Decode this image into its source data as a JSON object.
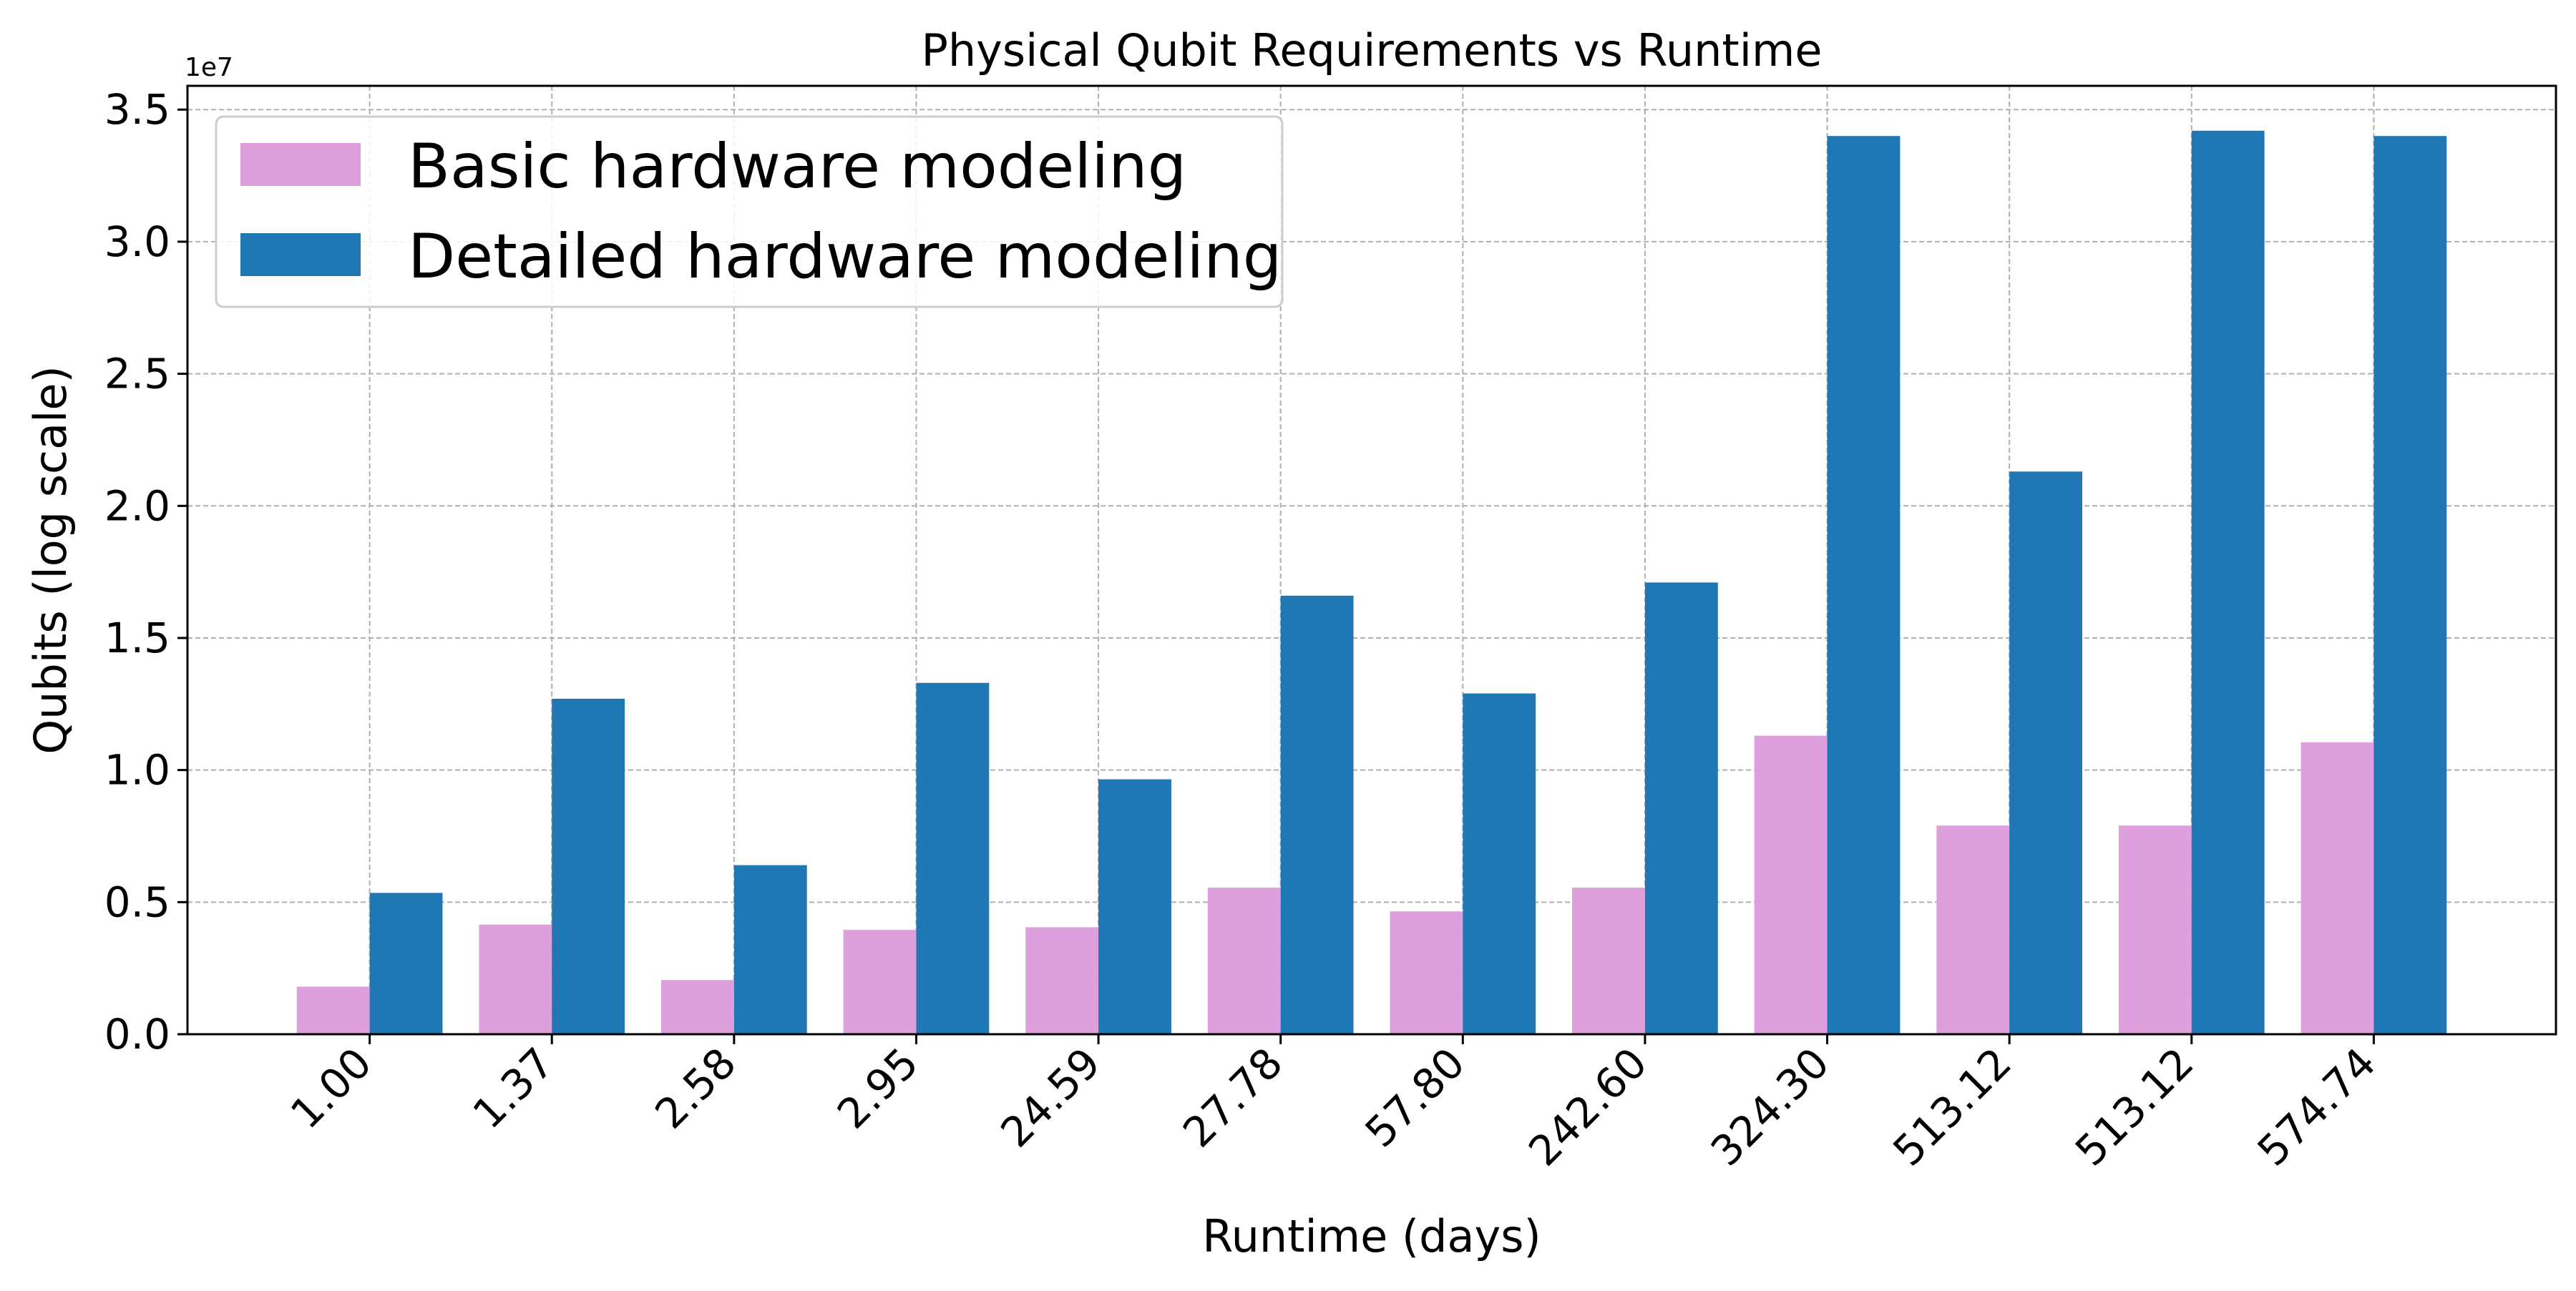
{
  "chart_data": {
    "type": "bar",
    "title": "Physical Qubit Requirements vs Runtime",
    "xlabel": "Runtime (days)",
    "ylabel": "Qubits (log scale)",
    "y_offset_label": "1e7",
    "categories": [
      "1.00",
      "1.37",
      "2.58",
      "2.95",
      "24.59",
      "27.78",
      "57.80",
      "242.60",
      "324.30",
      "513.12",
      "513.12",
      "574.74"
    ],
    "series": [
      {
        "name": "Basic hardware modeling",
        "color": "#dda0dd",
        "values": [
          1800000,
          4150000,
          2050000,
          3950000,
          4050000,
          5550000,
          4650000,
          5550000,
          11300000,
          7900000,
          7900000,
          11050000
        ]
      },
      {
        "name": "Detailed hardware modeling",
        "color": "#1f77b4",
        "values": [
          5350000,
          12700000,
          6400000,
          13300000,
          9650000,
          16600000,
          12900000,
          17100000,
          34000000,
          21300000,
          34200000,
          34000000
        ]
      }
    ],
    "ylim": [
      0,
      35900000
    ],
    "yticks": [
      {
        "value": 0,
        "label": "0.0"
      },
      {
        "value": 5000000,
        "label": "0.5"
      },
      {
        "value": 10000000,
        "label": "1.0"
      },
      {
        "value": 15000000,
        "label": "1.5"
      },
      {
        "value": 20000000,
        "label": "2.0"
      },
      {
        "value": 25000000,
        "label": "2.5"
      },
      {
        "value": 30000000,
        "label": "3.0"
      },
      {
        "value": 35000000,
        "label": "3.5"
      }
    ],
    "grid": true,
    "legend_position": "top-left"
  }
}
